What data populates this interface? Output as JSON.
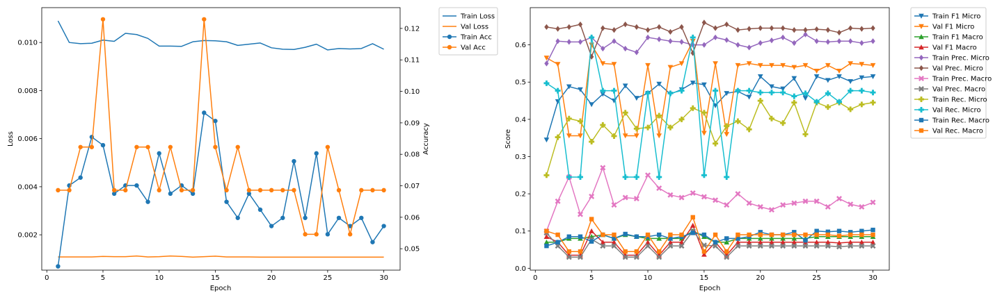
{
  "chart_data": [
    {
      "type": "line",
      "xlabel": "Epoch",
      "ylabel": "Loss",
      "y2label": "Accuracy",
      "x": [
        1,
        2,
        3,
        4,
        5,
        6,
        7,
        8,
        9,
        10,
        11,
        12,
        13,
        14,
        15,
        16,
        17,
        18,
        19,
        20,
        21,
        22,
        23,
        24,
        25,
        26,
        27,
        28,
        29,
        30
      ],
      "xlim": [
        -0.45,
        31.45
      ],
      "ylim": [
        0.00053,
        0.01145
      ],
      "y2lim": [
        0.0432,
        0.1266
      ],
      "xticks": [
        0,
        5,
        10,
        15,
        20,
        25,
        30
      ],
      "yticks": [
        0.002,
        0.004,
        0.006,
        0.008,
        0.01
      ],
      "ytick_labels": [
        "0.002",
        "0.004",
        "0.006",
        "0.008",
        "0.010"
      ],
      "y2ticks": [
        0.05,
        0.06,
        0.07,
        0.08,
        0.09,
        0.1,
        0.11,
        0.12
      ],
      "y2tick_labels": [
        "0.05",
        "0.06",
        "0.07",
        "0.08",
        "0.09",
        "0.10",
        "0.11",
        "0.12"
      ],
      "legend_position": "outside-top-right",
      "series": [
        {
          "name": "Train Loss",
          "axis": "left",
          "color": "#1f77b4",
          "marker": "none",
          "values": [
            0.0109,
            0.01,
            0.00995,
            0.00997,
            0.0101,
            0.01005,
            0.01038,
            0.01033,
            0.01017,
            0.00985,
            0.00985,
            0.00984,
            0.01003,
            0.01008,
            0.01007,
            0.01003,
            0.00988,
            0.00993,
            0.00998,
            0.00978,
            0.00972,
            0.00971,
            0.0098,
            0.00993,
            0.00969,
            0.00975,
            0.00973,
            0.00975,
            0.00995,
            0.00972
          ]
        },
        {
          "name": "Val Loss",
          "axis": "left",
          "color": "#ff7f0e",
          "marker": "none",
          "values": [
            0.00108,
            0.00108,
            0.00108,
            0.00108,
            0.0011,
            0.00109,
            0.00109,
            0.00112,
            0.00108,
            0.00109,
            0.00112,
            0.0011,
            0.00107,
            0.00109,
            0.00111,
            0.00108,
            0.00108,
            0.00108,
            0.00107,
            0.00107,
            0.00107,
            0.00107,
            0.00107,
            0.00107,
            0.00107,
            0.00107,
            0.00107,
            0.00107,
            0.00107,
            0.00107
          ]
        },
        {
          "name": "Train Acc",
          "axis": "right",
          "color": "#1f77b4",
          "marker": "circle",
          "values": [
            0.0444,
            0.0701,
            0.0726,
            0.0855,
            0.0829,
            0.0675,
            0.0701,
            0.0701,
            0.0649,
            0.0803,
            0.0675,
            0.0701,
            0.0675,
            0.0932,
            0.0906,
            0.0649,
            0.0598,
            0.0675,
            0.0624,
            0.0572,
            0.0598,
            0.0778,
            0.0598,
            0.0803,
            0.0546,
            0.0598,
            0.0572,
            0.0598,
            0.0521,
            0.0572
          ]
        },
        {
          "name": "Val Acc",
          "axis": "right",
          "color": "#ff7f0e",
          "marker": "circle",
          "values": [
            0.0686,
            0.0686,
            0.0823,
            0.0823,
            0.1229,
            0.0686,
            0.0686,
            0.0823,
            0.0823,
            0.0686,
            0.0823,
            0.0686,
            0.0686,
            0.1229,
            0.0823,
            0.0686,
            0.0823,
            0.0686,
            0.0686,
            0.0686,
            0.0686,
            0.0686,
            0.0546,
            0.0546,
            0.0823,
            0.0686,
            0.0546,
            0.0686,
            0.0686,
            0.0686
          ]
        }
      ]
    },
    {
      "type": "line",
      "xlabel": "Epoch",
      "ylabel": "Score",
      "x": [
        1,
        2,
        3,
        4,
        5,
        6,
        7,
        8,
        9,
        10,
        11,
        12,
        13,
        14,
        15,
        16,
        17,
        18,
        19,
        20,
        21,
        22,
        23,
        24,
        25,
        26,
        27,
        28,
        29,
        30
      ],
      "xlim": [
        -0.45,
        31.45
      ],
      "ylim": [
        -0.005,
        0.7
      ],
      "xticks": [
        0,
        5,
        10,
        15,
        20,
        25,
        30
      ],
      "yticks": [
        0.0,
        0.1,
        0.2,
        0.3,
        0.4,
        0.5,
        0.6
      ],
      "ytick_labels": [
        "0.0",
        "0.1",
        "0.2",
        "0.3",
        "0.4",
        "0.5",
        "0.6"
      ],
      "legend_position": "outside-top-right",
      "series": [
        {
          "name": "Train F1 Micro",
          "color": "#1f77b4",
          "marker": "triangle-down",
          "values": [
            0.345,
            0.448,
            0.488,
            0.48,
            0.44,
            0.468,
            0.45,
            0.49,
            0.457,
            0.47,
            0.495,
            0.468,
            0.48,
            0.498,
            0.493,
            0.437,
            0.47,
            0.475,
            0.46,
            0.515,
            0.488,
            0.482,
            0.51,
            0.457,
            0.515,
            0.505,
            0.515,
            0.502,
            0.512,
            0.515
          ]
        },
        {
          "name": "Val F1 Micro",
          "color": "#ff7f0e",
          "marker": "triangle-down",
          "values": [
            0.565,
            0.548,
            0.356,
            0.356,
            0.6,
            0.55,
            0.548,
            0.356,
            0.356,
            0.545,
            0.356,
            0.54,
            0.55,
            0.61,
            0.363,
            0.55,
            0.36,
            0.545,
            0.55,
            0.545,
            0.545,
            0.545,
            0.54,
            0.545,
            0.53,
            0.545,
            0.53,
            0.55,
            0.548,
            0.545
          ]
        },
        {
          "name": "Train F1 Macro",
          "color": "#2ca02c",
          "marker": "triangle-up",
          "values": [
            0.07,
            0.07,
            0.08,
            0.08,
            0.085,
            0.09,
            0.08,
            0.09,
            0.085,
            0.08,
            0.08,
            0.08,
            0.08,
            0.1,
            0.085,
            0.07,
            0.07,
            0.08,
            0.08,
            0.08,
            0.08,
            0.08,
            0.08,
            0.08,
            0.085,
            0.085,
            0.085,
            0.085,
            0.085,
            0.085
          ]
        },
        {
          "name": "Val F1 Macro",
          "color": "#d62728",
          "marker": "triangle-up",
          "values": [
            0.085,
            0.07,
            0.035,
            0.035,
            0.1,
            0.07,
            0.07,
            0.035,
            0.035,
            0.07,
            0.035,
            0.07,
            0.07,
            0.115,
            0.037,
            0.07,
            0.035,
            0.07,
            0.07,
            0.07,
            0.07,
            0.07,
            0.07,
            0.07,
            0.07,
            0.07,
            0.068,
            0.07,
            0.07,
            0.07
          ]
        },
        {
          "name": "Train Prec. Micro",
          "color": "#9467bd",
          "marker": "diamond",
          "values": [
            0.55,
            0.61,
            0.608,
            0.608,
            0.62,
            0.59,
            0.61,
            0.59,
            0.58,
            0.62,
            0.615,
            0.61,
            0.608,
            0.6,
            0.6,
            0.62,
            0.613,
            0.6,
            0.593,
            0.605,
            0.612,
            0.62,
            0.605,
            0.628,
            0.61,
            0.608,
            0.61,
            0.61,
            0.605,
            0.61
          ]
        },
        {
          "name": "Val Prec. Micro",
          "color": "#8c564b",
          "marker": "diamond",
          "values": [
            0.648,
            0.643,
            0.648,
            0.655,
            0.568,
            0.645,
            0.64,
            0.655,
            0.648,
            0.64,
            0.648,
            0.635,
            0.648,
            0.578,
            0.66,
            0.645,
            0.655,
            0.64,
            0.643,
            0.645,
            0.645,
            0.645,
            0.64,
            0.64,
            0.642,
            0.64,
            0.633,
            0.645,
            0.643,
            0.645
          ]
        },
        {
          "name": "Train Prec. Macro",
          "color": "#e377c2",
          "marker": "x",
          "values": [
            0.1,
            0.18,
            0.245,
            0.145,
            0.193,
            0.27,
            0.17,
            0.19,
            0.187,
            0.25,
            0.215,
            0.197,
            0.19,
            0.202,
            0.192,
            0.183,
            0.17,
            0.2,
            0.175,
            0.165,
            0.157,
            0.17,
            0.175,
            0.18,
            0.18,
            0.165,
            0.187,
            0.172,
            0.165,
            0.177
          ]
        },
        {
          "name": "Val Prec. Macro",
          "color": "#7f7f7f",
          "marker": "x",
          "values": [
            0.095,
            0.06,
            0.03,
            0.03,
            0.078,
            0.06,
            0.06,
            0.03,
            0.03,
            0.06,
            0.03,
            0.06,
            0.06,
            0.1,
            0.062,
            0.06,
            0.03,
            0.06,
            0.06,
            0.06,
            0.06,
            0.06,
            0.06,
            0.06,
            0.06,
            0.06,
            0.058,
            0.06,
            0.06,
            0.06
          ]
        },
        {
          "name": "Train Rec. Micro",
          "color": "#bcbd22",
          "marker": "plus",
          "values": [
            0.25,
            0.352,
            0.402,
            0.395,
            0.34,
            0.385,
            0.355,
            0.418,
            0.375,
            0.378,
            0.41,
            0.378,
            0.4,
            0.43,
            0.418,
            0.335,
            0.382,
            0.395,
            0.373,
            0.45,
            0.402,
            0.39,
            0.445,
            0.36,
            0.445,
            0.433,
            0.445,
            0.427,
            0.44,
            0.445
          ]
        },
        {
          "name": "Val Rec. Micro",
          "color": "#17becf",
          "marker": "plus",
          "values": [
            0.497,
            0.477,
            0.245,
            0.245,
            0.62,
            0.477,
            0.477,
            0.245,
            0.245,
            0.47,
            0.245,
            0.47,
            0.477,
            0.62,
            0.25,
            0.477,
            0.245,
            0.477,
            0.477,
            0.472,
            0.472,
            0.472,
            0.462,
            0.47,
            0.447,
            0.47,
            0.447,
            0.477,
            0.477,
            0.472
          ]
        },
        {
          "name": "Train Rec. Macro",
          "color": "#1f77b4",
          "marker": "square",
          "values": [
            0.06,
            0.07,
            0.085,
            0.085,
            0.072,
            0.09,
            0.08,
            0.092,
            0.085,
            0.085,
            0.09,
            0.08,
            0.085,
            0.095,
            0.09,
            0.07,
            0.08,
            0.08,
            0.085,
            0.097,
            0.09,
            0.09,
            0.097,
            0.075,
            0.1,
            0.098,
            0.1,
            0.097,
            0.1,
            0.103
          ]
        },
        {
          "name": "Val Rec. Macro",
          "color": "#ff7f0e",
          "marker": "square",
          "values": [
            0.1,
            0.09,
            0.045,
            0.045,
            0.132,
            0.09,
            0.09,
            0.045,
            0.045,
            0.09,
            0.045,
            0.09,
            0.09,
            0.137,
            0.045,
            0.09,
            0.045,
            0.09,
            0.09,
            0.09,
            0.09,
            0.09,
            0.09,
            0.09,
            0.09,
            0.09,
            0.087,
            0.09,
            0.09,
            0.09
          ]
        }
      ]
    }
  ]
}
